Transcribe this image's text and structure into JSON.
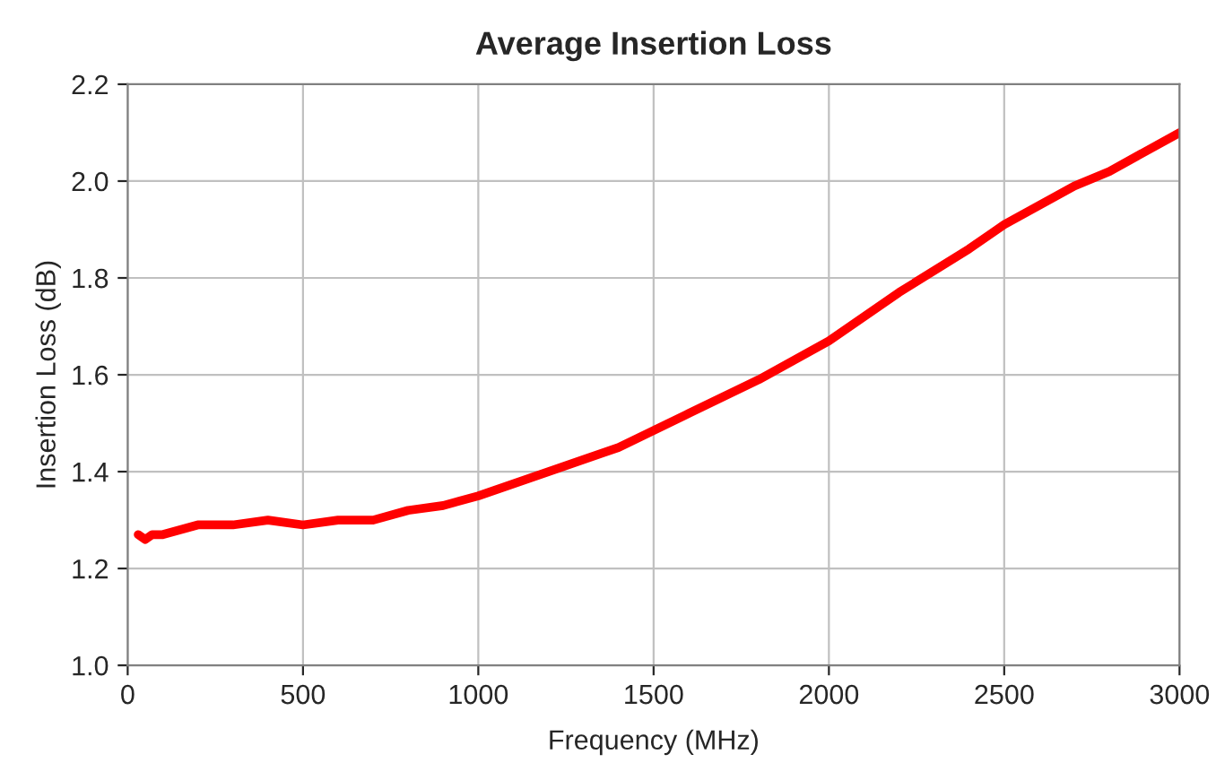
{
  "chart_data": {
    "type": "line",
    "title": "Average Insertion Loss",
    "xlabel": "Frequency (MHz)",
    "ylabel": "Insertion Loss (dB)",
    "series": [
      {
        "color": "#ff0000",
        "x": [
          30,
          50,
          70,
          100,
          200,
          300,
          400,
          500,
          600,
          700,
          800,
          900,
          1000,
          1200,
          1400,
          1600,
          1800,
          2000,
          2200,
          2400,
          2500,
          2700,
          2800,
          3000
        ],
        "values": [
          1.27,
          1.26,
          1.27,
          1.27,
          1.29,
          1.29,
          1.3,
          1.29,
          1.3,
          1.3,
          1.32,
          1.33,
          1.35,
          1.4,
          1.45,
          1.52,
          1.59,
          1.67,
          1.77,
          1.86,
          1.91,
          1.99,
          2.02,
          2.1
        ]
      }
    ],
    "xlim": [
      0,
      3000
    ],
    "xticks": [
      0,
      500,
      1000,
      1500,
      2000,
      2500,
      3000
    ],
    "ylim": [
      1.0,
      2.2
    ],
    "yticks": [
      {
        "value": 1.0,
        "label": "1.0"
      },
      {
        "value": 1.2,
        "label": "1.2"
      },
      {
        "value": 1.4,
        "label": "1.4"
      },
      {
        "value": 1.6,
        "label": "1.6"
      },
      {
        "value": 1.8,
        "label": "1.8"
      },
      {
        "value": 2.0,
        "label": "2.0"
      },
      {
        "value": 2.2,
        "label": "2.2"
      }
    ],
    "grid": true,
    "marker": "none",
    "line_style": "solid",
    "legend": false
  }
}
